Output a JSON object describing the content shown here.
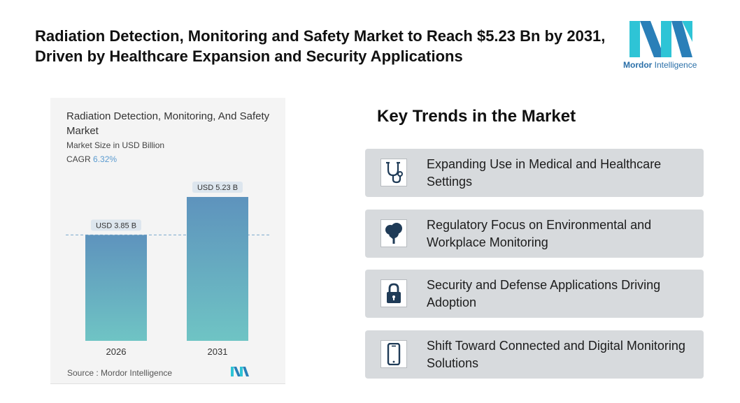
{
  "headline": "Radiation Detection, Monitoring and Safety Market to Reach $5.23 Bn by 2031, Driven by Healthcare Expansion and Security Applications",
  "brand": {
    "name_bold": "Mordor",
    "name_rest": " Intelligence",
    "accent_color": "#2ec4d6",
    "dark_color": "#2a6fa8"
  },
  "chart": {
    "title": "Radiation Detection, Monitoring, And Safety Market",
    "subtitle": "Market Size in USD Billion",
    "cagr_label": "CAGR",
    "cagr_value": "6.32%",
    "source": "Source :  Mordor Intelligence"
  },
  "chart_data": {
    "type": "bar",
    "categories": [
      "2026",
      "2031"
    ],
    "values": [
      3.85,
      5.23
    ],
    "data_labels": [
      "USD 3.85 B",
      "USD 5.23 B"
    ],
    "title": "Radiation Detection, Monitoring, And Safety Market",
    "ylabel": "Market Size in USD Billion",
    "xlabel": "",
    "ylim": [
      0,
      5.23
    ],
    "reference_line": 3.85,
    "bar_color_top": "#5e93bd",
    "bar_color_bottom": "#6fc4c4"
  },
  "trends": {
    "title": "Key Trends in the Market",
    "items": [
      {
        "label": "Expanding Use in Medical and Healthcare Settings",
        "icon": "stethoscope-icon"
      },
      {
        "label": "Regulatory Focus on Environmental and Workplace Monitoring",
        "icon": "tree-icon"
      },
      {
        "label": "Security and Defense Applications Driving Adoption",
        "icon": "lock-icon"
      },
      {
        "label": "Shift Toward Connected and Digital Monitoring Solutions",
        "icon": "mobile-device-icon"
      }
    ]
  }
}
